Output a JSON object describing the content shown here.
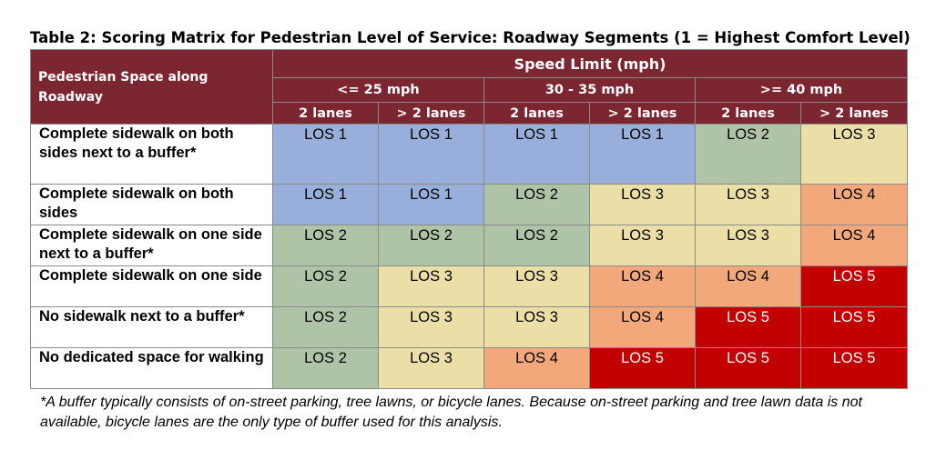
{
  "caption": "Table 2: Scoring Matrix for Pedestrian Level of Service: Roadway Segments (1 = Highest Comfort Level)",
  "header": {
    "corner": "Pedestrian Space along Roadway",
    "speed": "Speed Limit (mph)",
    "ranges": [
      "<= 25 mph",
      "30 - 35 mph",
      ">= 40 mph"
    ],
    "lanes": [
      "2 lanes",
      "> 2 lanes",
      "2 lanes",
      "> 2 lanes",
      "2 lanes",
      "> 2 lanes"
    ]
  },
  "rows": [
    {
      "label": "Complete sidewalk on both sides next to a buffer*",
      "values": [
        "LOS 1",
        "LOS 1",
        "LOS 1",
        "LOS 1",
        "LOS 2",
        "LOS 3"
      ]
    },
    {
      "label": "Complete sidewalk on both sides",
      "values": [
        "LOS 1",
        "LOS 1",
        "LOS 2",
        "LOS 3",
        "LOS 3",
        "LOS 4"
      ]
    },
    {
      "label": "Complete sidewalk on one side next to a buffer*",
      "values": [
        "LOS 2",
        "LOS 2",
        "LOS 2",
        "LOS 3",
        "LOS 3",
        "LOS 4"
      ]
    },
    {
      "label": "Complete sidewalk on one side",
      "values": [
        "LOS 2",
        "LOS 3",
        "LOS 3",
        "LOS 4",
        "LOS 4",
        "LOS 5"
      ]
    },
    {
      "label": "No sidewalk next to a buffer*",
      "values": [
        "LOS 2",
        "LOS 3",
        "LOS 3",
        "LOS 4",
        "LOS 5",
        "LOS 5"
      ]
    },
    {
      "label": "No dedicated space for walking",
      "values": [
        "LOS 2",
        "LOS 3",
        "LOS 4",
        "LOS 5",
        "LOS 5",
        "LOS 5"
      ]
    }
  ],
  "colors": {
    "header_bg": "#7b2630",
    "LOS 1": "#97afda",
    "LOS 2": "#afc4a6",
    "LOS 3": "#ebdea6",
    "LOS 4": "#f3a87c",
    "LOS 5": "#c20000"
  },
  "footnote": "*A buffer typically consists of on-street parking, tree lawns, or bicycle lanes. Because on-street parking and tree lawn data is not available, bicycle lanes are the only type of buffer used for this analysis."
}
